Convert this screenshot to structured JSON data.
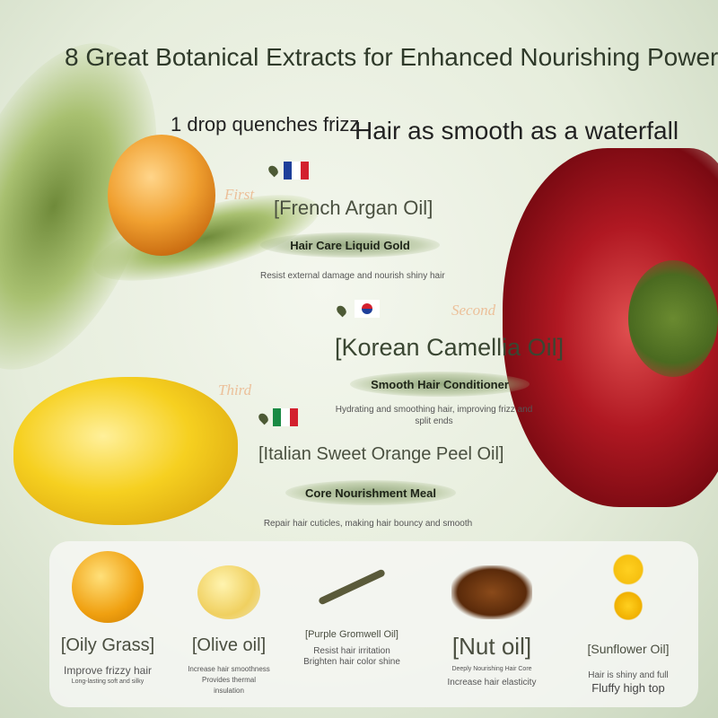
{
  "title": "8 Great Botanical Extracts for Enhanced Nourishing Power",
  "tagline_left": "1 drop quenches frizz",
  "tagline_right": "Hair as smooth as a waterfall",
  "extracts": [
    {
      "ordinal": "First",
      "flag": "france-flag",
      "name": "[French Argan Oil]",
      "subtitle": "Hair Care Liquid Gold",
      "description": "Resist external damage and nourish shiny hair"
    },
    {
      "ordinal": "Second",
      "flag": "south-korea-flag",
      "name": "[Korean Camellia Oil]",
      "subtitle": "Smooth Hair Conditioner",
      "description": "Hydrating and smoothing hair, improving frizz and split ends"
    },
    {
      "ordinal": "Third",
      "flag": "italy-flag",
      "name": "[Italian Sweet Orange Peel Oil]",
      "subtitle": "Core Nourishment Meal",
      "description": "Repair hair cuticles, making hair bouncy and smooth"
    }
  ],
  "ingredients": [
    {
      "name": "[Oily Grass]",
      "line1": "Improve frizzy hair",
      "line2": "Long-lasting soft and silky"
    },
    {
      "name": "[Olive oil]",
      "line1": "Increase hair smoothness",
      "line2": "Provides thermal insulation"
    },
    {
      "name": "[Purple Gromwell Oil]",
      "line1": "Resist hair irritation",
      "line2": "Brighten hair color shine"
    },
    {
      "name": "[Nut oil]",
      "line1": "Deeply Nourishing Hair Core",
      "line2": "Increase hair elasticity"
    },
    {
      "name": "[Sunflower Oil]",
      "line1": "Hair is shiny and full",
      "line2": "Fluffy high top"
    }
  ],
  "colors": {
    "text": "#3c4335",
    "ordinal": "#ecc09a",
    "accent_green": "#4d5a35"
  }
}
